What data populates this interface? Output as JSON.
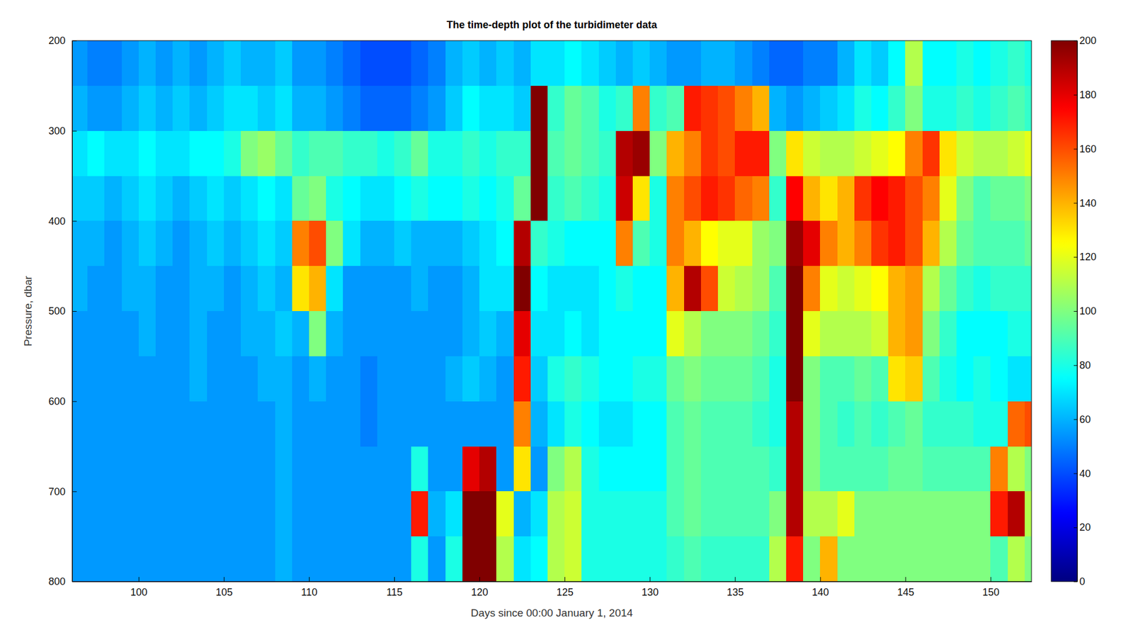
{
  "chart_data": {
    "type": "heatmap",
    "title": "The time-depth plot of the turbidimeter data",
    "x_label": "Days since 00:00 January 1, 2014",
    "y_label": "Pressure, dbar",
    "xlim": [
      96.1,
      152.4
    ],
    "ylim": [
      200,
      800
    ],
    "xticks": [
      100,
      105,
      110,
      115,
      120,
      125,
      130,
      135,
      140,
      145,
      150
    ],
    "yticks": [
      200,
      300,
      400,
      500,
      600,
      700,
      800
    ],
    "colorbar_range": [
      0,
      200
    ],
    "colorbar_ticks": [
      0,
      20,
      40,
      60,
      80,
      100,
      120,
      140,
      160,
      180,
      200
    ],
    "x": [
      96.5,
      97.5,
      98.5,
      99.5,
      100.5,
      101.5,
      102.5,
      103.5,
      104.5,
      105.5,
      106.5,
      107.5,
      108.5,
      109.5,
      110.5,
      111.5,
      112.5,
      113.5,
      114.5,
      115.5,
      116.5,
      117.5,
      118.5,
      119.5,
      120.5,
      121.5,
      122.5,
      123.5,
      124.5,
      125.5,
      126.5,
      127.5,
      128.5,
      129.5,
      130.5,
      131.5,
      132.5,
      133.5,
      134.5,
      135.5,
      136.5,
      137.5,
      138.5,
      139.5,
      140.5,
      141.5,
      142.5,
      143.5,
      144.5,
      145.5,
      146.5,
      147.5,
      148.5,
      149.5,
      150.5,
      151.5,
      152.5
    ],
    "y": [
      225,
      275,
      325,
      375,
      425,
      475,
      525,
      575,
      625,
      675,
      725,
      775
    ],
    "values": [
      [
        55,
        50,
        50,
        55,
        60,
        55,
        60,
        55,
        60,
        65,
        60,
        60,
        65,
        55,
        55,
        50,
        45,
        40,
        40,
        40,
        45,
        50,
        60,
        65,
        60,
        65,
        60,
        70,
        70,
        75,
        70,
        65,
        60,
        65,
        60,
        55,
        55,
        60,
        60,
        55,
        50,
        45,
        45,
        50,
        50,
        60,
        70,
        65,
        75,
        110,
        75,
        75,
        80,
        75,
        80,
        85,
        80
      ],
      [
        60,
        55,
        55,
        60,
        65,
        60,
        65,
        60,
        65,
        70,
        70,
        65,
        70,
        60,
        60,
        55,
        50,
        45,
        45,
        45,
        50,
        55,
        65,
        75,
        70,
        70,
        65,
        200,
        85,
        95,
        90,
        80,
        85,
        150,
        85,
        90,
        170,
        165,
        160,
        150,
        140,
        60,
        55,
        60,
        65,
        70,
        80,
        75,
        85,
        100,
        80,
        80,
        85,
        80,
        85,
        90,
        85
      ],
      [
        70,
        75,
        70,
        70,
        75,
        70,
        70,
        75,
        75,
        80,
        100,
        105,
        95,
        85,
        90,
        90,
        85,
        85,
        80,
        85,
        95,
        80,
        80,
        85,
        80,
        85,
        85,
        200,
        90,
        95,
        90,
        85,
        190,
        195,
        100,
        140,
        150,
        165,
        160,
        170,
        170,
        100,
        130,
        115,
        110,
        110,
        115,
        120,
        125,
        150,
        165,
        130,
        115,
        110,
        110,
        115,
        120
      ],
      [
        65,
        65,
        60,
        65,
        70,
        65,
        60,
        65,
        70,
        65,
        70,
        75,
        70,
        95,
        100,
        80,
        75,
        70,
        70,
        75,
        80,
        75,
        75,
        80,
        75,
        80,
        95,
        200,
        85,
        90,
        85,
        80,
        185,
        130,
        80,
        150,
        160,
        170,
        165,
        155,
        150,
        85,
        175,
        140,
        130,
        140,
        165,
        175,
        170,
        160,
        150,
        120,
        100,
        90,
        95,
        95,
        100
      ],
      [
        60,
        60,
        55,
        60,
        65,
        60,
        55,
        60,
        65,
        60,
        65,
        70,
        65,
        150,
        160,
        100,
        70,
        60,
        60,
        65,
        60,
        60,
        60,
        65,
        70,
        75,
        190,
        85,
        80,
        75,
        75,
        75,
        150,
        90,
        80,
        150,
        140,
        125,
        120,
        120,
        105,
        100,
        195,
        180,
        150,
        140,
        150,
        165,
        170,
        160,
        140,
        110,
        95,
        90,
        90,
        90,
        95
      ],
      [
        60,
        55,
        55,
        60,
        60,
        55,
        55,
        60,
        60,
        55,
        60,
        65,
        60,
        130,
        140,
        70,
        55,
        55,
        55,
        55,
        60,
        55,
        55,
        60,
        70,
        70,
        200,
        75,
        70,
        70,
        70,
        75,
        80,
        75,
        75,
        140,
        190,
        160,
        115,
        110,
        105,
        90,
        200,
        150,
        120,
        115,
        120,
        125,
        140,
        145,
        110,
        95,
        85,
        80,
        85,
        85,
        85
      ],
      [
        55,
        55,
        55,
        55,
        60,
        55,
        55,
        60,
        55,
        55,
        60,
        60,
        65,
        60,
        100,
        60,
        55,
        55,
        55,
        55,
        55,
        55,
        55,
        60,
        65,
        60,
        180,
        70,
        70,
        75,
        70,
        75,
        75,
        75,
        75,
        120,
        110,
        100,
        100,
        100,
        95,
        85,
        200,
        120,
        110,
        110,
        110,
        115,
        140,
        145,
        100,
        85,
        75,
        75,
        75,
        80,
        80
      ],
      [
        55,
        55,
        55,
        55,
        55,
        55,
        55,
        60,
        55,
        55,
        55,
        60,
        60,
        55,
        60,
        55,
        55,
        50,
        55,
        55,
        55,
        55,
        60,
        65,
        60,
        55,
        170,
        65,
        80,
        85,
        80,
        75,
        75,
        80,
        80,
        95,
        100,
        95,
        95,
        95,
        90,
        80,
        200,
        100,
        90,
        90,
        95,
        90,
        130,
        135,
        90,
        80,
        75,
        80,
        75,
        70,
        70
      ],
      [
        55,
        55,
        55,
        55,
        55,
        55,
        55,
        55,
        55,
        55,
        55,
        55,
        60,
        55,
        55,
        55,
        55,
        50,
        55,
        55,
        55,
        55,
        55,
        55,
        55,
        55,
        150,
        60,
        70,
        80,
        75,
        70,
        70,
        75,
        75,
        90,
        95,
        90,
        90,
        90,
        85,
        80,
        190,
        100,
        90,
        85,
        90,
        85,
        90,
        95,
        85,
        85,
        85,
        80,
        80,
        155,
        160
      ],
      [
        55,
        55,
        55,
        55,
        55,
        55,
        55,
        55,
        55,
        55,
        55,
        55,
        60,
        55,
        55,
        55,
        55,
        55,
        55,
        55,
        80,
        55,
        55,
        180,
        190,
        55,
        130,
        55,
        100,
        110,
        80,
        75,
        75,
        75,
        75,
        90,
        95,
        90,
        90,
        90,
        90,
        85,
        190,
        100,
        90,
        90,
        90,
        90,
        95,
        95,
        90,
        90,
        90,
        90,
        150,
        110,
        100
      ],
      [
        55,
        55,
        55,
        55,
        55,
        55,
        55,
        55,
        55,
        55,
        55,
        55,
        60,
        55,
        55,
        55,
        55,
        55,
        55,
        55,
        170,
        60,
        70,
        200,
        200,
        120,
        60,
        70,
        110,
        115,
        80,
        80,
        80,
        80,
        80,
        90,
        95,
        90,
        90,
        90,
        90,
        100,
        190,
        110,
        110,
        120,
        100,
        100,
        100,
        100,
        100,
        100,
        100,
        100,
        170,
        190,
        110
      ],
      [
        55,
        55,
        55,
        55,
        55,
        55,
        55,
        55,
        55,
        55,
        55,
        55,
        60,
        55,
        55,
        55,
        55,
        55,
        55,
        55,
        80,
        55,
        80,
        200,
        200,
        110,
        70,
        75,
        110,
        115,
        80,
        80,
        80,
        80,
        80,
        85,
        90,
        85,
        85,
        85,
        85,
        110,
        170,
        100,
        140,
        100,
        100,
        100,
        100,
        100,
        100,
        100,
        100,
        100,
        90,
        110,
        100
      ]
    ]
  }
}
